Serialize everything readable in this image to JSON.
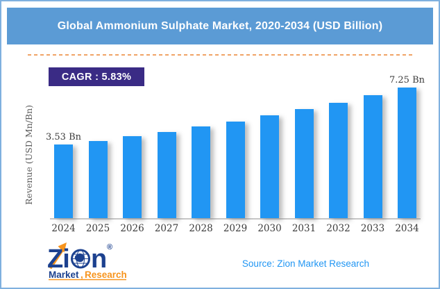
{
  "colors": {
    "header_bg": "#5B9BD5",
    "bar": "#2196F3",
    "badge_bg": "#3A2B85",
    "frame_border": "#7FB0DF",
    "dashed_line": "#F0A366",
    "axis_text": "#3A3A3A",
    "axis_line": "#C6C6C6",
    "ylabel_text": "#5C5C5C",
    "source_text": "#2196F3",
    "logo_navy": "#1C418F",
    "logo_orange": "#F7941D"
  },
  "header": {
    "title": "Global Ammonium Sulphate Market, 2020-2034 (USD Billion)"
  },
  "badge": {
    "label": "CAGR : 5.83%"
  },
  "chart_data": {
    "type": "bar",
    "title": "Global Ammonium Sulphate Market, 2020-2034 (USD Billion)",
    "categories": [
      "2024",
      "2025",
      "2026",
      "2027",
      "2028",
      "2029",
      "2030",
      "2031",
      "2032",
      "2033",
      "2034"
    ],
    "values": [
      3.53,
      3.79,
      4.08,
      4.38,
      4.71,
      5.06,
      5.44,
      5.84,
      6.28,
      6.75,
      7.25
    ],
    "unit": "USD Billion",
    "xlabel": "",
    "ylabel": "Revenue (USD Mn/Bn)",
    "data_labels": {
      "first": "3.53 Bn",
      "last": "7.25 Bn"
    },
    "cagr": "5.83%",
    "bar_color": "#2196F3",
    "grid": false,
    "legend": false
  },
  "footer": {
    "source": "Source: Zion Market Research",
    "logo": {
      "part_zi": "Zi",
      "part_n": "n",
      "registered": "®",
      "market": "Market",
      "comma": ",",
      "research": "Research"
    }
  }
}
